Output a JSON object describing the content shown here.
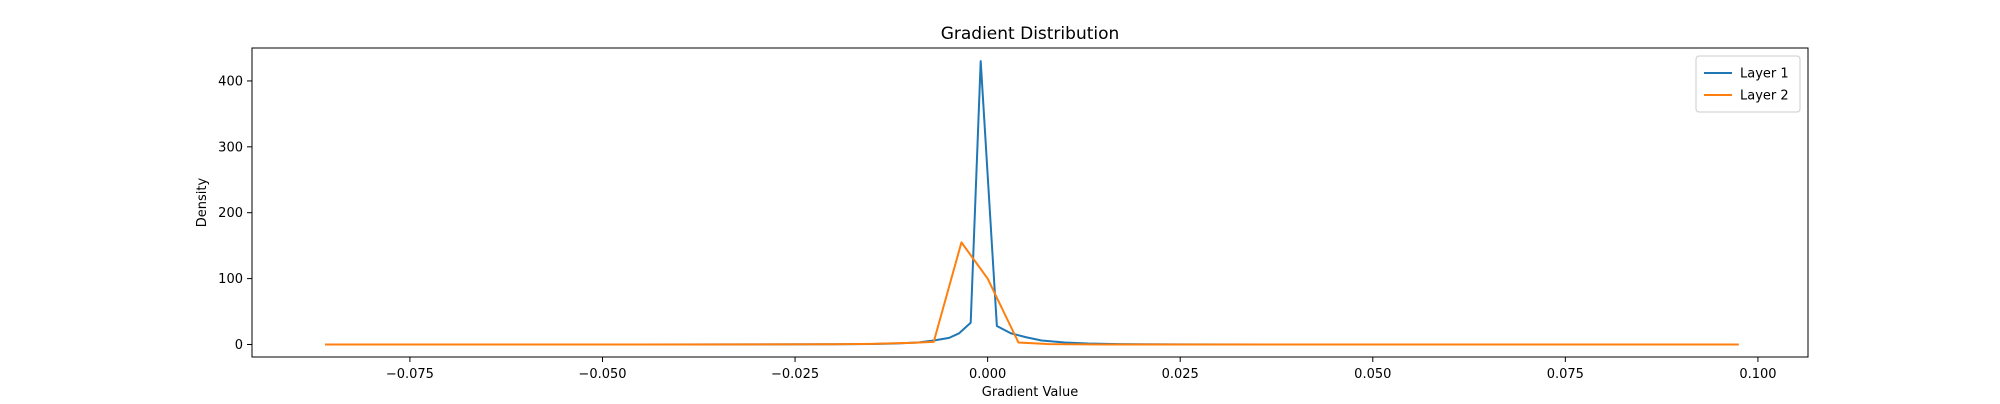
{
  "chart_data": {
    "type": "line",
    "title": "Gradient Distribution",
    "xlabel": "Gradient Value",
    "ylabel": "Density",
    "xlim": [
      -0.0955,
      0.1065
    ],
    "ylim": [
      -19,
      450
    ],
    "xticks": [
      -0.075,
      -0.05,
      -0.025,
      0.0,
      0.025,
      0.05,
      0.075,
      0.1
    ],
    "xtick_labels": [
      "−0.075",
      "−0.050",
      "−0.025",
      "0.000",
      "0.025",
      "0.050",
      "0.075",
      "0.100"
    ],
    "yticks": [
      0,
      100,
      200,
      300,
      400
    ],
    "ytick_labels": [
      "0",
      "100",
      "200",
      "300",
      "400"
    ],
    "grid": false,
    "legend_position": "top-right",
    "series": [
      {
        "name": "Layer 1",
        "color": "#1f77b4",
        "points": [
          [
            -0.086,
            0
          ],
          [
            -0.05,
            0
          ],
          [
            -0.03,
            0.1
          ],
          [
            -0.02,
            0.3
          ],
          [
            -0.015,
            0.8
          ],
          [
            -0.012,
            1.5
          ],
          [
            -0.009,
            3
          ],
          [
            -0.007,
            6
          ],
          [
            -0.005,
            10
          ],
          [
            -0.0037,
            17
          ],
          [
            -0.0022,
            33
          ],
          [
            -0.0009,
            430
          ],
          [
            0.0012,
            28
          ],
          [
            0.003,
            17
          ],
          [
            0.005,
            11
          ],
          [
            0.007,
            6
          ],
          [
            0.01,
            3
          ],
          [
            0.013,
            1.5
          ],
          [
            0.017,
            0.6
          ],
          [
            0.025,
            0.2
          ],
          [
            0.04,
            0
          ],
          [
            0.0975,
            0
          ]
        ]
      },
      {
        "name": "Layer 2",
        "color": "#ff7f0e",
        "points": [
          [
            -0.086,
            0
          ],
          [
            -0.04,
            0
          ],
          [
            -0.02,
            0.3
          ],
          [
            -0.015,
            1
          ],
          [
            -0.01,
            2.5
          ],
          [
            -0.007,
            4
          ],
          [
            -0.0034,
            155
          ],
          [
            0.0,
            100
          ],
          [
            0.004,
            3
          ],
          [
            0.008,
            0.5
          ],
          [
            0.015,
            0
          ],
          [
            0.0975,
            0
          ]
        ]
      }
    ]
  }
}
